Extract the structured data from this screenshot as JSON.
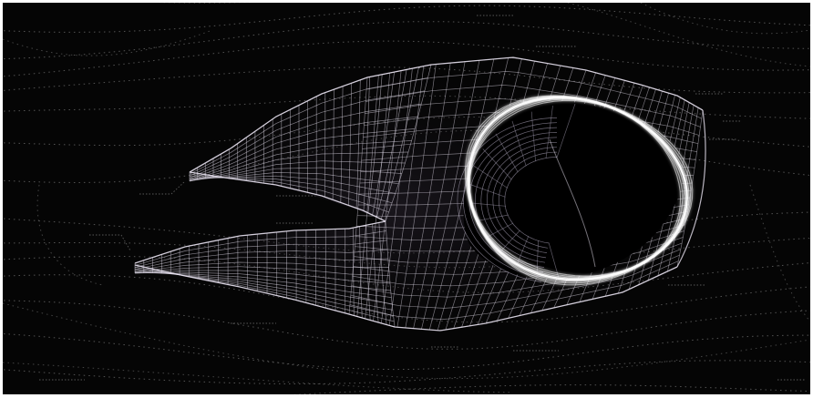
{
  "image": {
    "subject": "wireframe-mesh-form",
    "colors": {
      "background": "#050505",
      "mesh": "#e8e2f0",
      "mesh_dim": "#9b94a8",
      "flow_lines": "#6e6e6e",
      "frame": "#ffffff"
    }
  }
}
